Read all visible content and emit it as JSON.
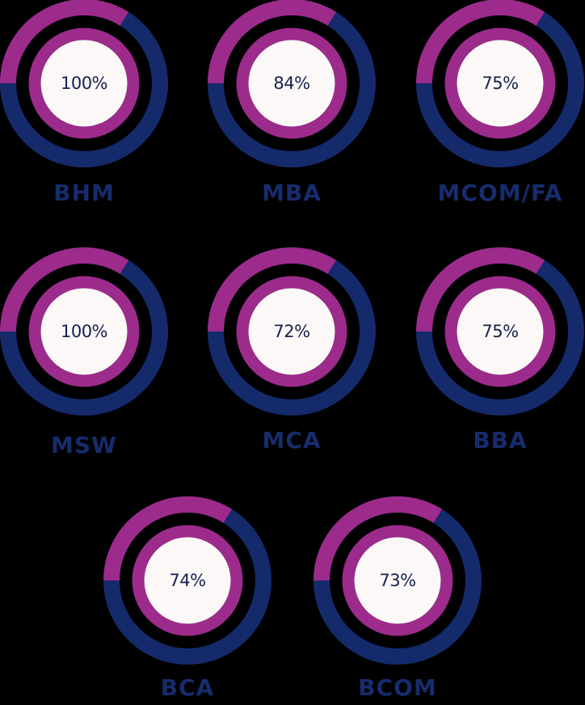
{
  "colors": {
    "background": "#000000",
    "outer_highlight": "#9c2b8c",
    "outer_base": "#142a6b",
    "inner_ring": "#9c2b8c",
    "center": "#fdf8f8",
    "text": "#16214f",
    "label": "#162c6c"
  },
  "items": [
    {
      "value": "100%",
      "label": "BHM"
    },
    {
      "value": "84%",
      "label": "MBA"
    },
    {
      "value": "75%",
      "label": "MCOM/FA"
    },
    {
      "value": "100%",
      "label": "MSW"
    },
    {
      "value": "72%",
      "label": "MCA"
    },
    {
      "value": "75%",
      "label": "BBA"
    },
    {
      "value": "74%",
      "label": "BCA"
    },
    {
      "value": "73%",
      "label": "BCOM"
    }
  ]
}
